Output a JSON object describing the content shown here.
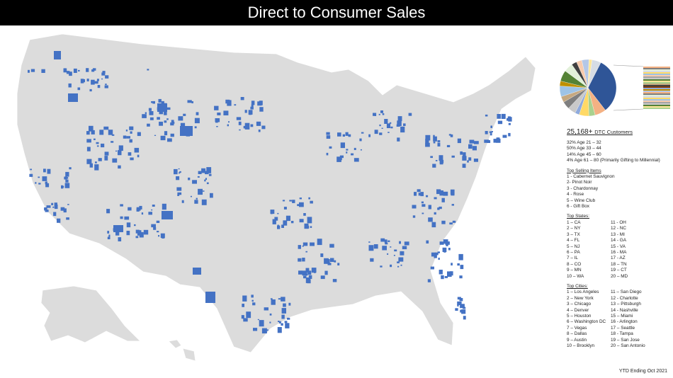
{
  "title": "Direct to Consumer Sales",
  "map": {
    "land_color": "#dcdcdc",
    "border_color": "#ffffff",
    "highlight_color": "#4472c4"
  },
  "customers": {
    "count": "25,168+",
    "label": "DTC Customers",
    "ages": [
      "32% Age 21 – 32",
      "50% Age 33 – 44",
      "14% Age 45 – 60",
      "4% Age 61 – 80 (Primarily Gifting to Millennial)"
    ]
  },
  "top_items": {
    "title": "Top Selling Items",
    "items": [
      "1 - Cabernet Sauvignon",
      "2- Pinot Noir",
      "3 - Chardonnay",
      "4 - Rose",
      "5 – Wine Club",
      "6 - Gift Box"
    ]
  },
  "top_states": {
    "title": "Top States:",
    "left": [
      "1 – CA",
      "2 – NY",
      "3 – TX",
      "4 – FL",
      "5 – NJ",
      "6 – PA",
      "7 – IL",
      "8 – CO",
      "9 – MN",
      "10 – WA"
    ],
    "right": [
      "11 - OH",
      "12 - NC",
      "13 - MI",
      "14 - GA",
      "15 - VA",
      "16 - MA",
      "17 - AZ",
      "18 – TN",
      "19 – CT",
      "20 – MD"
    ]
  },
  "top_cities": {
    "title": "Top Cities:",
    "left": [
      "1 – Los Angeles",
      "2 – New York",
      "3 – Chicago",
      "4 – Denver",
      "5 – Houston",
      "6 – Washington DC",
      "7 – Vegas",
      "8 – Dallas",
      "9 – Austin",
      "10 – Brooklyn"
    ],
    "right": [
      "11 – San Diego",
      "12 - Charlotte",
      "13 – Pittsburgh",
      "14 - Nashville",
      "15 – Miami",
      "16 - Arlington",
      "17 – Seattle",
      "18 - Tampa",
      "19 – San Jose",
      "20 – San Antonio"
    ]
  },
  "pie": {
    "main_color": "#2f5597",
    "palette": [
      "#f4b183",
      "#a9d18e",
      "#ffd966",
      "#8faadc",
      "#c9c9c9",
      "#7f7f7f",
      "#c5a880",
      "#9dc3e6",
      "#bf9000",
      "#548235",
      "#e2f0d9",
      "#404040",
      "#f8cbad",
      "#b4c7e7",
      "#ffe699",
      "#d6dce5",
      "#843c0c",
      "#a5a5a5"
    ]
  },
  "footer": "YTD Ending Oct 2021"
}
